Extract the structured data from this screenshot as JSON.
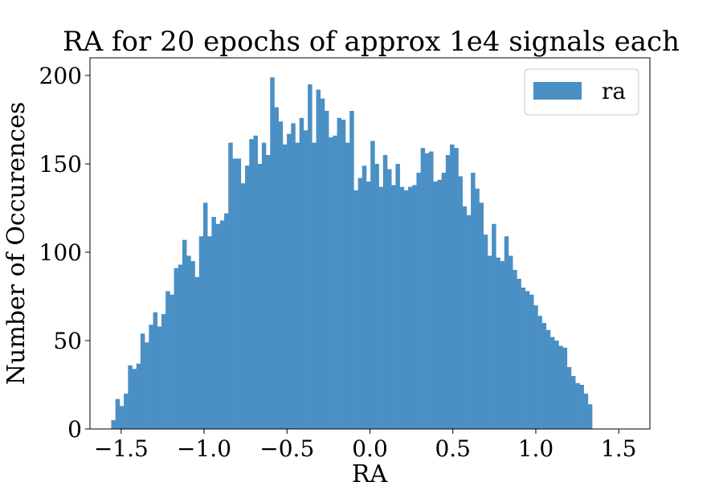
{
  "chart_data": {
    "type": "bar",
    "title": "RA for 20 epochs of approx 1e4 signals each",
    "xlabel": "RA",
    "ylabel": "Number of Occurences",
    "legend": {
      "label": "ra",
      "placement": "top-right"
    },
    "series_color": "#4a90c4",
    "xlim": [
      -1.688,
      1.688
    ],
    "ylim": [
      0,
      210
    ],
    "xticks": [
      -1.5,
      -1.0,
      -0.5,
      0.0,
      0.5,
      1.0,
      1.5
    ],
    "xtick_labels": [
      "−1.5",
      "−1.0",
      "−0.5",
      "0.0",
      "0.5",
      "1.0",
      "1.5"
    ],
    "yticks": [
      0,
      50,
      100,
      150,
      200
    ],
    "ytick_labels": [
      "0",
      "50",
      "100",
      "150",
      "200"
    ],
    "bin_start": -1.5597,
    "bin_width": 0.02521,
    "values": [
      5,
      17,
      13,
      20,
      36,
      34,
      37,
      54,
      49,
      59,
      66,
      58,
      65,
      78,
      76,
      91,
      93,
      107,
      98,
      95,
      86,
      109,
      128,
      109,
      120,
      116,
      118,
      122,
      162,
      153,
      153,
      139,
      149,
      164,
      166,
      150,
      162,
      155,
      199,
      182,
      174,
      161,
      167,
      173,
      162,
      176,
      169,
      195,
      162,
      192,
      187,
      180,
      165,
      166,
      176,
      175,
      162,
      180,
      135,
      142,
      149,
      140,
      163,
      150,
      137,
      155,
      147,
      138,
      150,
      137,
      135,
      137,
      138,
      145,
      159,
      156,
      157,
      140,
      141,
      145,
      155,
      161,
      159,
      143,
      126,
      121,
      145,
      136,
      128,
      110,
      98,
      116,
      97,
      95,
      109,
      98,
      90,
      85,
      80,
      78,
      76,
      70,
      64,
      60,
      56,
      52,
      50,
      47,
      46,
      35,
      30,
      26,
      25,
      20,
      14
    ]
  }
}
